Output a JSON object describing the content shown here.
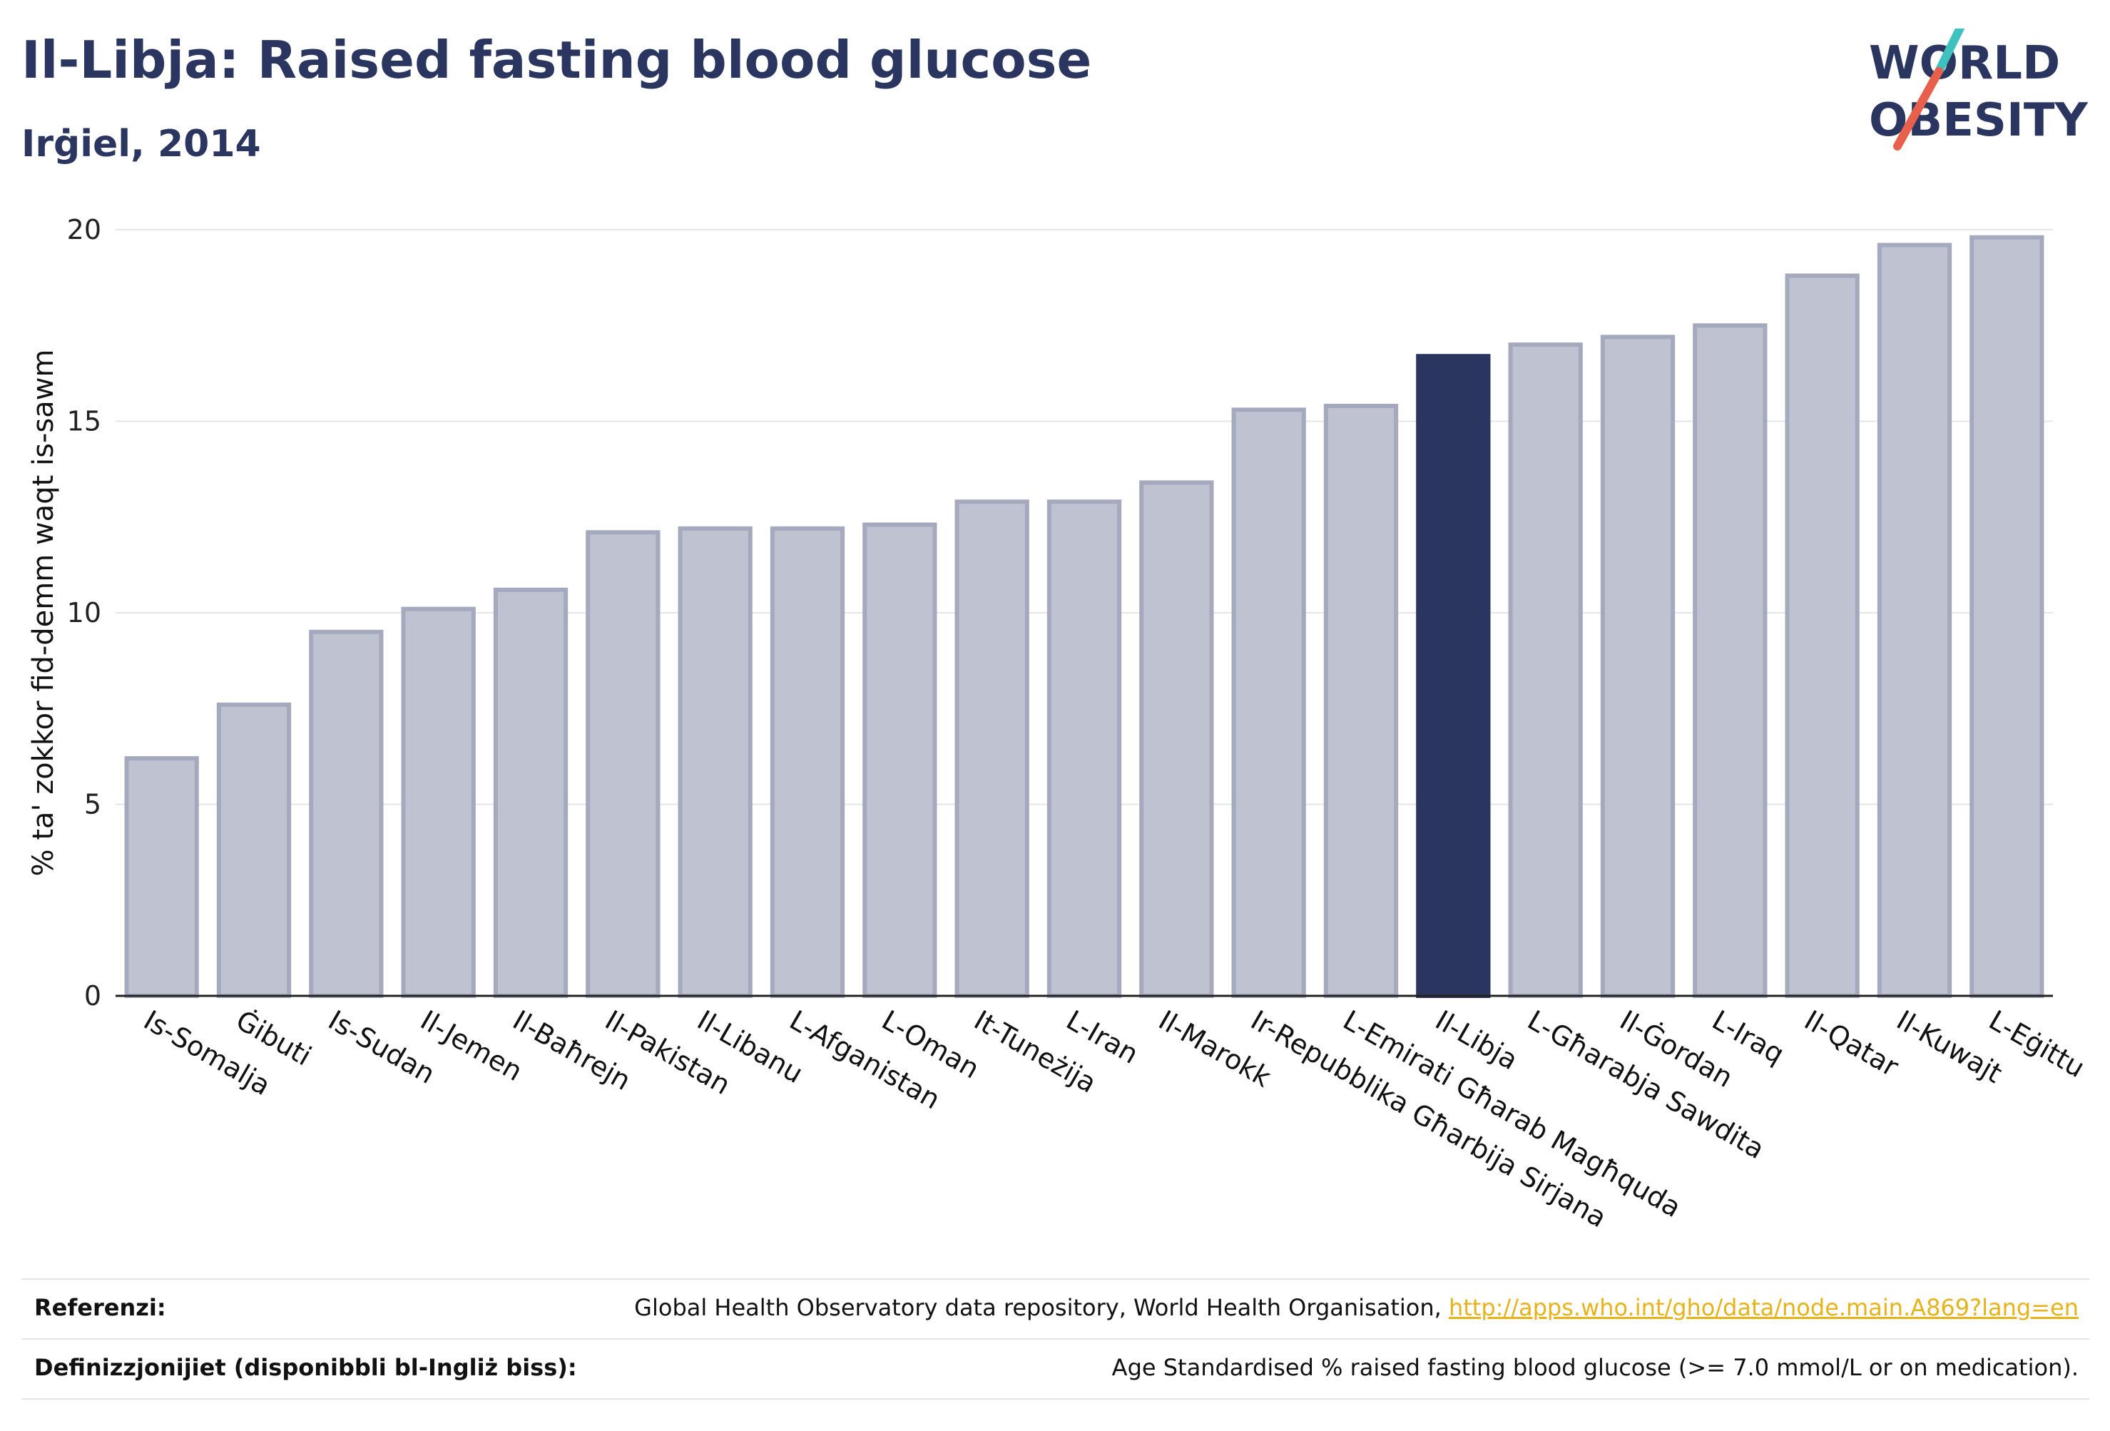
{
  "header": {
    "title": "Il-Libja: Raised fasting blood glucose",
    "subtitle": "Irġiel, 2014"
  },
  "logo": {
    "line1": "WORLD",
    "line2": "OBESITY",
    "colors": {
      "text": "#2a3560",
      "slash_top": "#3fc1c0",
      "slash_bottom": "#e8604c"
    }
  },
  "colors": {
    "bar": "#bfc2d0",
    "bar_stroke": "#a4a9be",
    "highlight": "#2a3560",
    "grid": "#e6e6ea"
  },
  "chart_data": {
    "type": "bar",
    "ylabel": "% ta' zokkor fid-demm waqt is-sawm",
    "ylim": [
      0,
      20
    ],
    "yticks": [
      0,
      5,
      10,
      15,
      20
    ],
    "grid": true,
    "highlight": "Il-Libja",
    "categories": [
      "Is-Somalja",
      "Ġibuti",
      "Is-Sudan",
      "Il-Jemen",
      "Il-Baħrejn",
      "Il-Pakistan",
      "Il-Libanu",
      "L-Afganistan",
      "L-Oman",
      "It-Tuneżija",
      "L-Iran",
      "Il-Marokk",
      "Ir-Repubblika Għarbija Sirjana",
      "L-Emirati Għarab Magħquda",
      "Il-Libja",
      "L-Għarabja Sawdita",
      "Il-Ġordan",
      "L-Iraq",
      "Il-Qatar",
      "Il-Kuwajt",
      "L-Eġittu"
    ],
    "values": [
      6.2,
      7.6,
      9.5,
      10.1,
      10.6,
      12.1,
      12.2,
      12.2,
      12.3,
      12.9,
      12.9,
      13.4,
      15.3,
      15.4,
      16.7,
      17.0,
      17.2,
      17.5,
      18.8,
      19.6,
      19.8
    ]
  },
  "footer": {
    "references_label": "Referenzi:",
    "references_text": "Global Health Observatory data repository, World Health Organisation, ",
    "references_link": "http://apps.who.int/gho/data/node.main.A869?lang=en",
    "definitions_label": "Definizzjonijiet (disponibbli bl-Ingliż biss):",
    "definitions_text": "Age Standardised % raised fasting blood glucose (>= 7.0 mmol/L or on medication)."
  }
}
